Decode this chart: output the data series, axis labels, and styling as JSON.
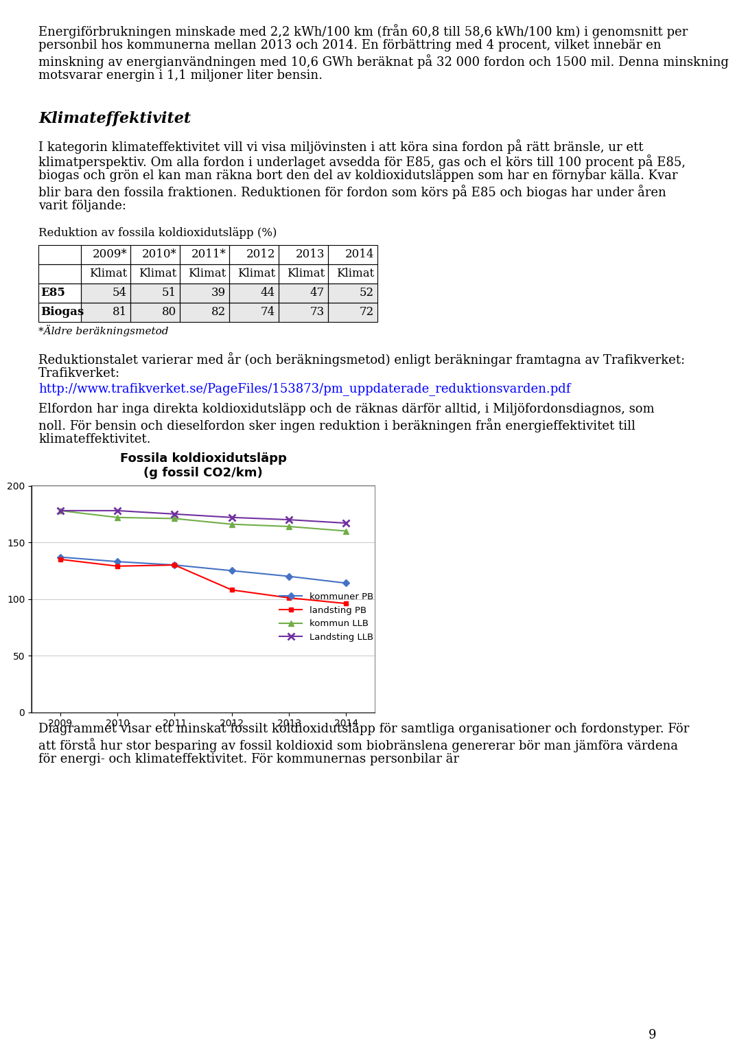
{
  "page_bg": "#ffffff",
  "top_paragraph": "Energiförbrukningen minskade med 2,2 kWh/100 km (från 60,8 till 58,6 kWh/100 km) i genomsnitt per personbil hos kommunerna mellan 2013 och 2014. En förbättring med 4 procent, vilket innebär en minskning av energianvändningen med 10,6 GWh beräknat på 32 000 fordon och 1500 mil. Denna minskning motsvarar energin i 1,1 miljoner liter bensin.",
  "section_heading": "Klimateffektivitet",
  "para1": "I kategorin klimateffektivitet vill vi visa miljövinsten i att köra sina fordon på rätt bränsle, ur ett klimatperspektiv. Om alla fordon i underlaget avsedda för E85, gas och el körs till 100 procent på E85, biogas och grön el kan man räkna bort den del av koldioxidutsläppen som har en förnybar källa. Kvar blir bara den fossila fraktionen. Reduktionen för fordon som körs på E85 och biogas har under åren varit följande:",
  "table_title": "Reduktion av fossila koldioxidutsläpp (%)",
  "table_col_headers": [
    "",
    "2009*",
    "2010*",
    "2011*",
    "2012",
    "2013",
    "2014"
  ],
  "table_sub_headers": [
    "",
    "Klimat",
    "Klimat",
    "Klimat",
    "Klimat",
    "Klimat",
    "Klimat"
  ],
  "table_row1_label": "E85",
  "table_row1_data": [
    54,
    51,
    39,
    44,
    47,
    52
  ],
  "table_row2_label": "Biogas",
  "table_row2_data": [
    81,
    80,
    82,
    74,
    73,
    72
  ],
  "table_footnote": "*Äldre beräkningsmetod",
  "para2": "Reduktionstalet varierar med år (och beräkningsmetod) enligt beräkningar framtagna av Trafikverket:",
  "trafikverket_label": "Trafikverket:",
  "url": "http://www.trafikverket.se/PageFiles/153873/pm_uppdaterade_reduktionsvarden.pdf",
  "para3": "Elfordon har inga direkta koldioxidutsläpp och de räknas därför alltid, i Miljöfordonsdiagnos, som noll. För bensin och dieselfordon sker ingen reduktion i beräkningen från energieffektivitet till klimateffektivitet.",
  "chart_title_line1": "Fossila koldioxidutsläpp",
  "chart_title_line2": "(g fossil CO2/km)",
  "chart_years": [
    2009,
    2010,
    2011,
    2012,
    2013,
    2014
  ],
  "kommuner_PB": [
    137,
    133,
    130,
    125,
    120,
    114
  ],
  "landsting_PB": [
    135,
    129,
    130,
    108,
    101,
    96
  ],
  "kommun_LLB": [
    178,
    172,
    171,
    166,
    164,
    160
  ],
  "landsting_LLB": [
    178,
    178,
    175,
    172,
    170,
    167
  ],
  "kommuner_color": "#4472C4",
  "landsting_color": "#FF0000",
  "kommun_LLB_color": "#70AD47",
  "landsting_LLB_color": "#7030A0",
  "ylim": [
    0,
    200
  ],
  "yticks": [
    0,
    50,
    100,
    150,
    200
  ],
  "legend_entries": [
    "kommuner PB",
    "landsting PB",
    "kommun LLB",
    "Landsting LLB"
  ],
  "chart_border_color": "#808080",
  "bottom_para": "Diagrammet visar ett minskat fossilt koldioxidutsläpp för samtliga organisationer och fordonstyper. För att förstå hur stor besparing av fossil koldioxid som biobränslena genererar bör man jämföra värdena för energi- och klimateffektivitet. För kommunernas personbilar är",
  "page_number": "9"
}
